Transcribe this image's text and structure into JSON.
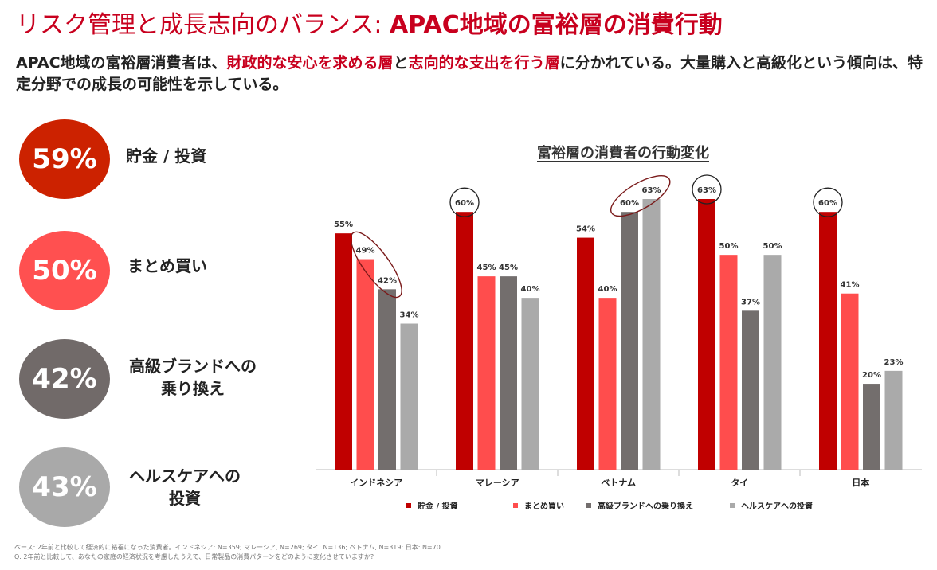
{
  "header": {
    "title_part1": "リスク管理と成長志向のバランス: ",
    "title_part2": "APAC地域の富裕層の消費行動",
    "subtitle": {
      "p1": "APAC地域の富裕層消費者は、",
      "h1": "財政的な安心を求める層",
      "p2": "と",
      "h2": "志向的な支出を行う層",
      "p3": "に分かれている。大量購入と高級化という傾向は、特定分野での成長の可能性を示している。"
    }
  },
  "stats": [
    {
      "value": "59%",
      "label_line1": "貯金 / 投資",
      "label_line2": "",
      "color": "#cc2200"
    },
    {
      "value": "50%",
      "label_line1": "まとめ買い",
      "label_line2": "",
      "color": "#ff5050"
    },
    {
      "value": "42%",
      "label_line1": "高級ブランドへの",
      "label_line2": "乗り換え",
      "color": "#716a69"
    },
    {
      "value": "43%",
      "label_line1": "ヘルスケアへの",
      "label_line2": "投資",
      "color": "#a9a9a9"
    }
  ],
  "chart_data": {
    "type": "bar",
    "title": "富裕層の消費者の行動変化",
    "categories": [
      "インドネシア",
      "マレーシア",
      "ベトナム",
      "タイ",
      "日本"
    ],
    "series": [
      {
        "name": "貯金 / 投資",
        "color": "#c00000",
        "values": [
          55,
          60,
          54,
          63,
          60
        ]
      },
      {
        "name": "まとめ買い",
        "color": "#ff4d4d",
        "values": [
          49,
          45,
          40,
          50,
          41
        ]
      },
      {
        "name": "高級ブランドへの乗り換え",
        "color": "#736e6d",
        "values": [
          42,
          45,
          60,
          37,
          20
        ]
      },
      {
        "name": "ヘルスケアへの投資",
        "color": "#aaaaaa",
        "values": [
          34,
          40,
          63,
          50,
          23
        ]
      }
    ],
    "value_labels": [
      [
        "55%",
        "60%",
        "54%",
        "63%",
        "60%"
      ],
      [
        "49%",
        "45%",
        "40%",
        "50%",
        "41%"
      ],
      [
        "42%",
        "45%",
        "60%",
        "37%",
        "20%"
      ],
      [
        "34%",
        "40%",
        "63%",
        "50%",
        "23%"
      ]
    ],
    "ylim": [
      0,
      63
    ],
    "xlabel": "",
    "ylabel": "",
    "legend_position": "bottom",
    "highlights": [
      {
        "category_index": 0,
        "series": [
          1,
          2
        ]
      },
      {
        "category_index": 1,
        "series": [
          0
        ]
      },
      {
        "category_index": 2,
        "series": [
          2,
          3
        ]
      },
      {
        "category_index": 3,
        "series": [
          0
        ]
      },
      {
        "category_index": 4,
        "series": [
          0
        ]
      }
    ]
  },
  "footnotes": {
    "line1": "ベース: 2年前と比較して経済的に裕福になった消費者。インドネシア: N=359; マレーシア, N=269; タイ: N=136; ベトナム, N=319; 日本: N=70",
    "line2": "Q. 2年前と比較して、あなたの家庭の経済状況を考慮したうえで、日常製品の消費パターンをどのように変化させていますか?"
  }
}
